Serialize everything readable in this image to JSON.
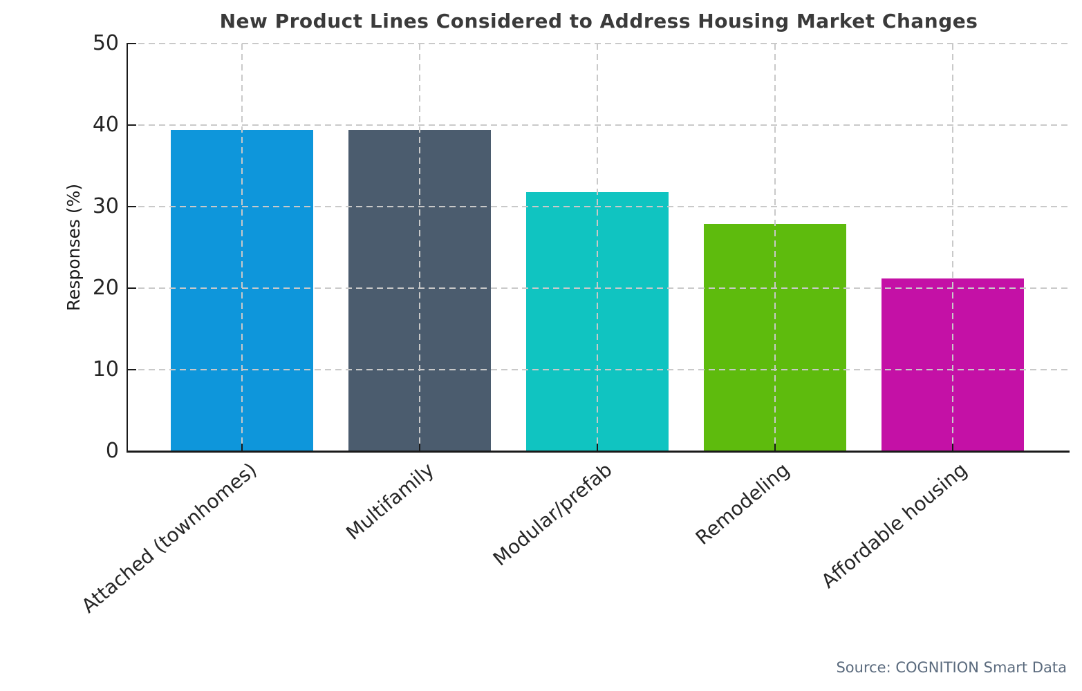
{
  "chart_data": {
    "type": "bar",
    "title": "New Product Lines Considered to Address Housing Market Changes",
    "categories": [
      "Attached (townhomes)",
      "Multifamily",
      "Modular/prefab",
      "Remodeling",
      "Affordable housing"
    ],
    "values": [
      39.4,
      39.4,
      31.8,
      27.9,
      21.2
    ],
    "bar_colors": [
      "#0e96db",
      "#4b5c6e",
      "#10c4c1",
      "#5ebb0d",
      "#c411a6"
    ],
    "xlabel": "",
    "ylabel": "Responses (%)",
    "ylim": [
      0,
      50
    ],
    "yticks": [
      0,
      10,
      20,
      30,
      40,
      50
    ],
    "grid": "dashed gridlines on both axes, drawn above bars",
    "legend": "none",
    "source": "Source: COGNITION Smart Data",
    "colors": {
      "grid": "#c9c9c9",
      "spine": "#1a1a1a",
      "title_text": "#3a3a3a",
      "tick_text": "#262626",
      "source_text": "#5a6a7d",
      "background": "#ffffff"
    }
  }
}
